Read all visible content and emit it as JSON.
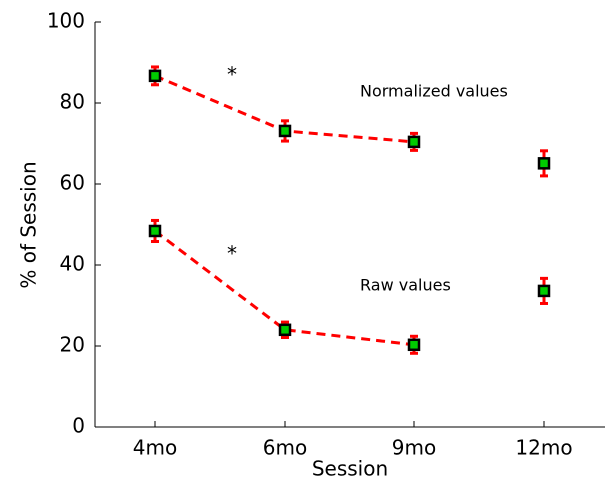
{
  "chart_data": {
    "type": "errorbar",
    "xlabel": "Session",
    "ylabel": "% of Session",
    "categories": [
      "4mo",
      "6mo",
      "9mo",
      "12mo"
    ],
    "series": [
      {
        "name": "Normalized values",
        "color": "#ff0000",
        "marker_color": "#00cc00",
        "values": [
          86.7,
          73.1,
          70.4,
          65.1
        ],
        "errors": [
          2.2,
          2.5,
          2.1,
          3.1
        ],
        "connect": [
          true,
          true,
          true,
          false
        ]
      },
      {
        "name": "Raw values",
        "color": "#ff0000",
        "marker_color": "#00cc00",
        "values": [
          48.4,
          24.0,
          20.3,
          33.6
        ],
        "errors": [
          2.6,
          1.9,
          2.1,
          3.1
        ],
        "connect": [
          true,
          true,
          true,
          false
        ]
      }
    ],
    "annotations": [
      "*",
      "*"
    ],
    "ylim": [
      0,
      100
    ],
    "yticks": [
      0,
      20,
      40,
      60,
      80,
      100
    ],
    "grid": false
  }
}
